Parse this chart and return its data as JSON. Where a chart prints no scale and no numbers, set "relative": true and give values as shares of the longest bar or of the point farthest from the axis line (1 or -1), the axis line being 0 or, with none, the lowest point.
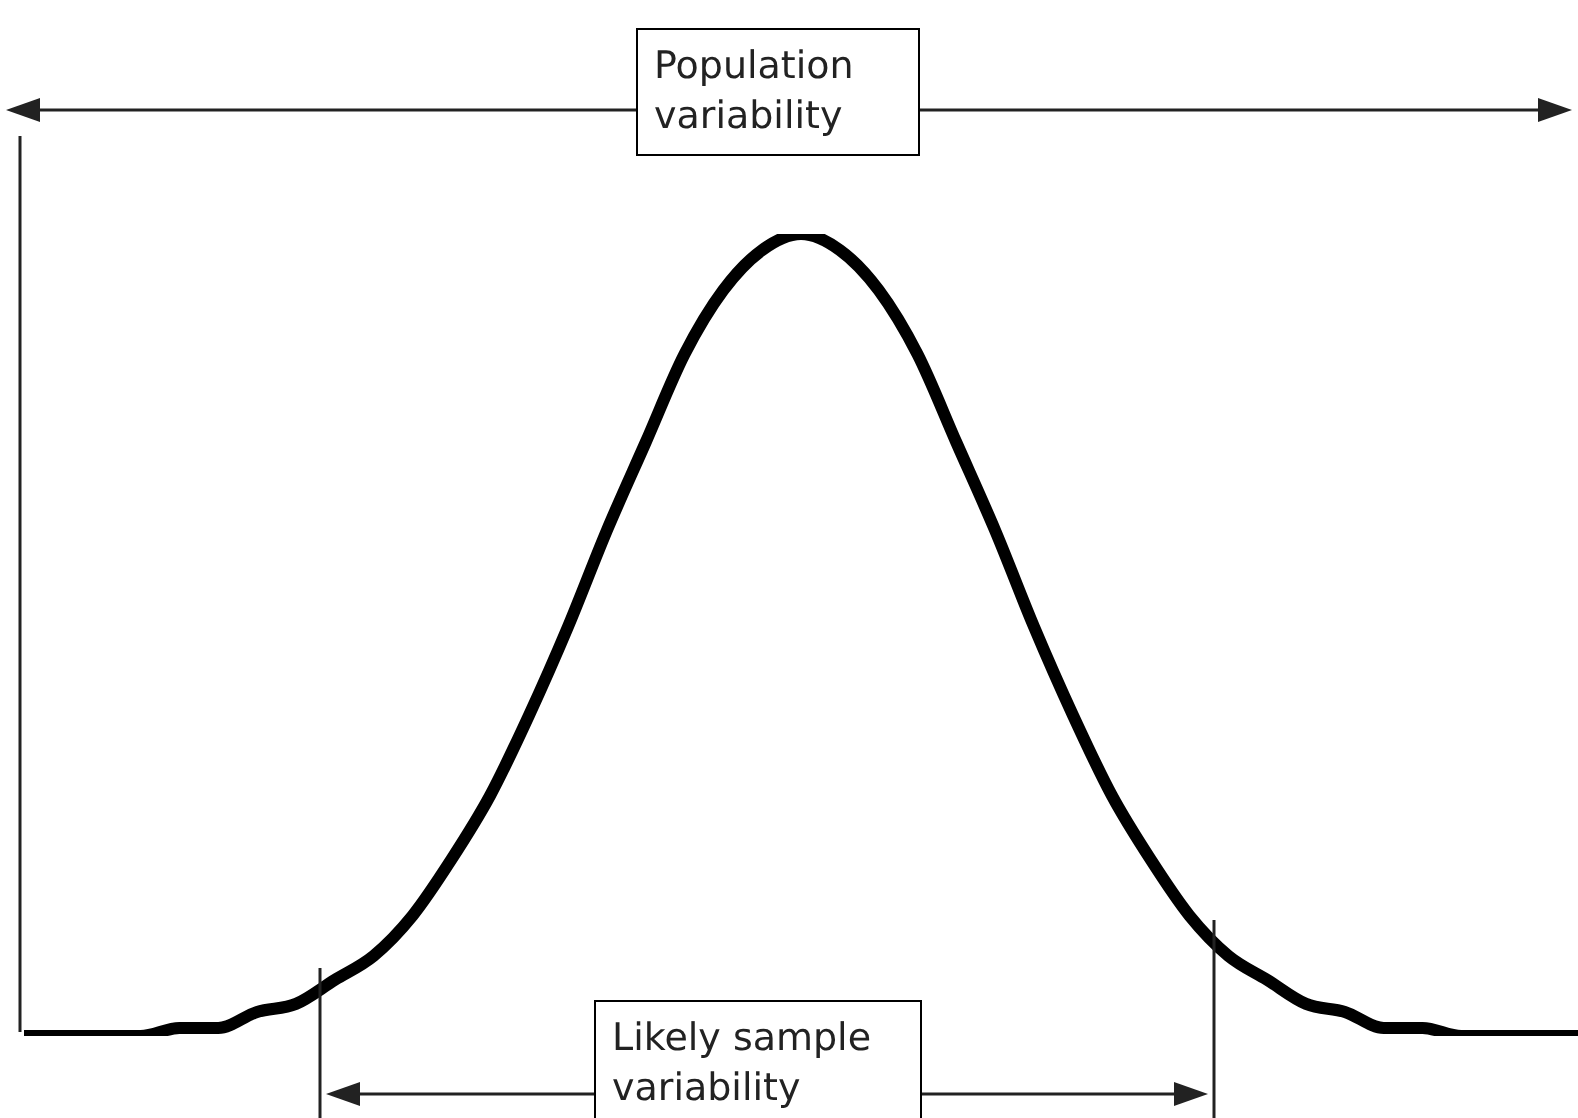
{
  "chart_data": {
    "type": "line",
    "relative": true,
    "categories": [
      null,
      null,
      null,
      null,
      null,
      null,
      null,
      null,
      null,
      null,
      null,
      null,
      null,
      null,
      null,
      null,
      null,
      null,
      null,
      null,
      null,
      null,
      null,
      null,
      null,
      null,
      null,
      null,
      null,
      null,
      null,
      null,
      null,
      null,
      null,
      null,
      null,
      null,
      null,
      null,
      null
    ],
    "values": [
      0,
      0,
      0,
      0,
      0.01,
      0.01,
      0.03,
      0.04,
      0.07,
      0.1,
      0.15,
      0.22,
      0.3,
      0.4,
      0.51,
      0.63,
      0.74,
      0.85,
      0.93,
      0.98,
      1,
      0.98,
      0.93,
      0.85,
      0.74,
      0.63,
      0.51,
      0.4,
      0.3,
      0.22,
      0.15,
      0.1,
      0.07,
      0.04,
      0.03,
      0.01,
      0.01,
      0,
      0,
      0,
      0
    ],
    "color": "#000000",
    "annotations": [
      "Population variability",
      "Likely sample variability"
    ]
  }
}
